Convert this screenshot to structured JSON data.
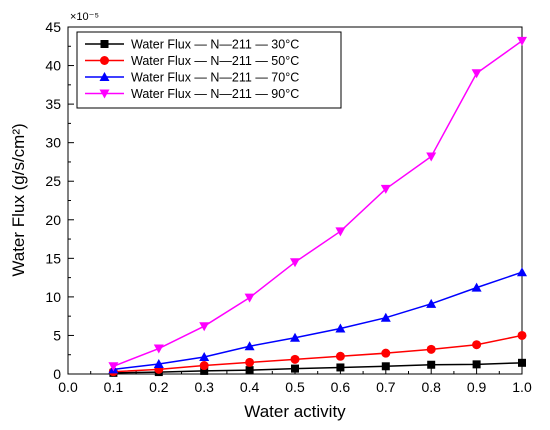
{
  "chart_data": {
    "type": "line",
    "xlabel": "Water activity",
    "ylabel": "Water Flux (g/s/cm²)",
    "y_multiplier": "×10⁻⁵",
    "xlim": [
      0.0,
      1.0
    ],
    "ylim": [
      0,
      45
    ],
    "xticks": [
      0.0,
      0.1,
      0.2,
      0.3,
      0.4,
      0.5,
      0.6,
      0.7,
      0.8,
      0.9,
      1.0
    ],
    "yticks": [
      0,
      5,
      10,
      15,
      20,
      25,
      30,
      35,
      40,
      45
    ],
    "legend_position": "top-left",
    "grid": false,
    "x": [
      0.1,
      0.2,
      0.3,
      0.4,
      0.5,
      0.6,
      0.7,
      0.8,
      0.9,
      1.0
    ],
    "series": [
      {
        "name": "Water Flux — N—211 — 30°C",
        "color": "#000000",
        "marker": "square",
        "values": [
          0.15,
          0.25,
          0.4,
          0.5,
          0.7,
          0.85,
          1.0,
          1.2,
          1.25,
          1.45
        ]
      },
      {
        "name": "Water Flux — N—211 — 50°C",
        "color": "#ff0000",
        "marker": "circle",
        "values": [
          0.3,
          0.6,
          1.1,
          1.5,
          1.9,
          2.3,
          2.7,
          3.2,
          3.8,
          5.0
        ]
      },
      {
        "name": "Water Flux — N—211 — 70°C",
        "color": "#0000ff",
        "marker": "triangle-up",
        "values": [
          0.6,
          1.3,
          2.2,
          3.6,
          4.7,
          5.9,
          7.3,
          9.1,
          11.2,
          13.2
        ]
      },
      {
        "name": "Water Flux — N—211 — 90°C",
        "color": "#ff00ff",
        "marker": "triangle-down",
        "values": [
          1.0,
          3.3,
          6.2,
          9.9,
          14.5,
          18.5,
          24.0,
          28.2,
          39.0,
          43.2
        ]
      }
    ]
  }
}
